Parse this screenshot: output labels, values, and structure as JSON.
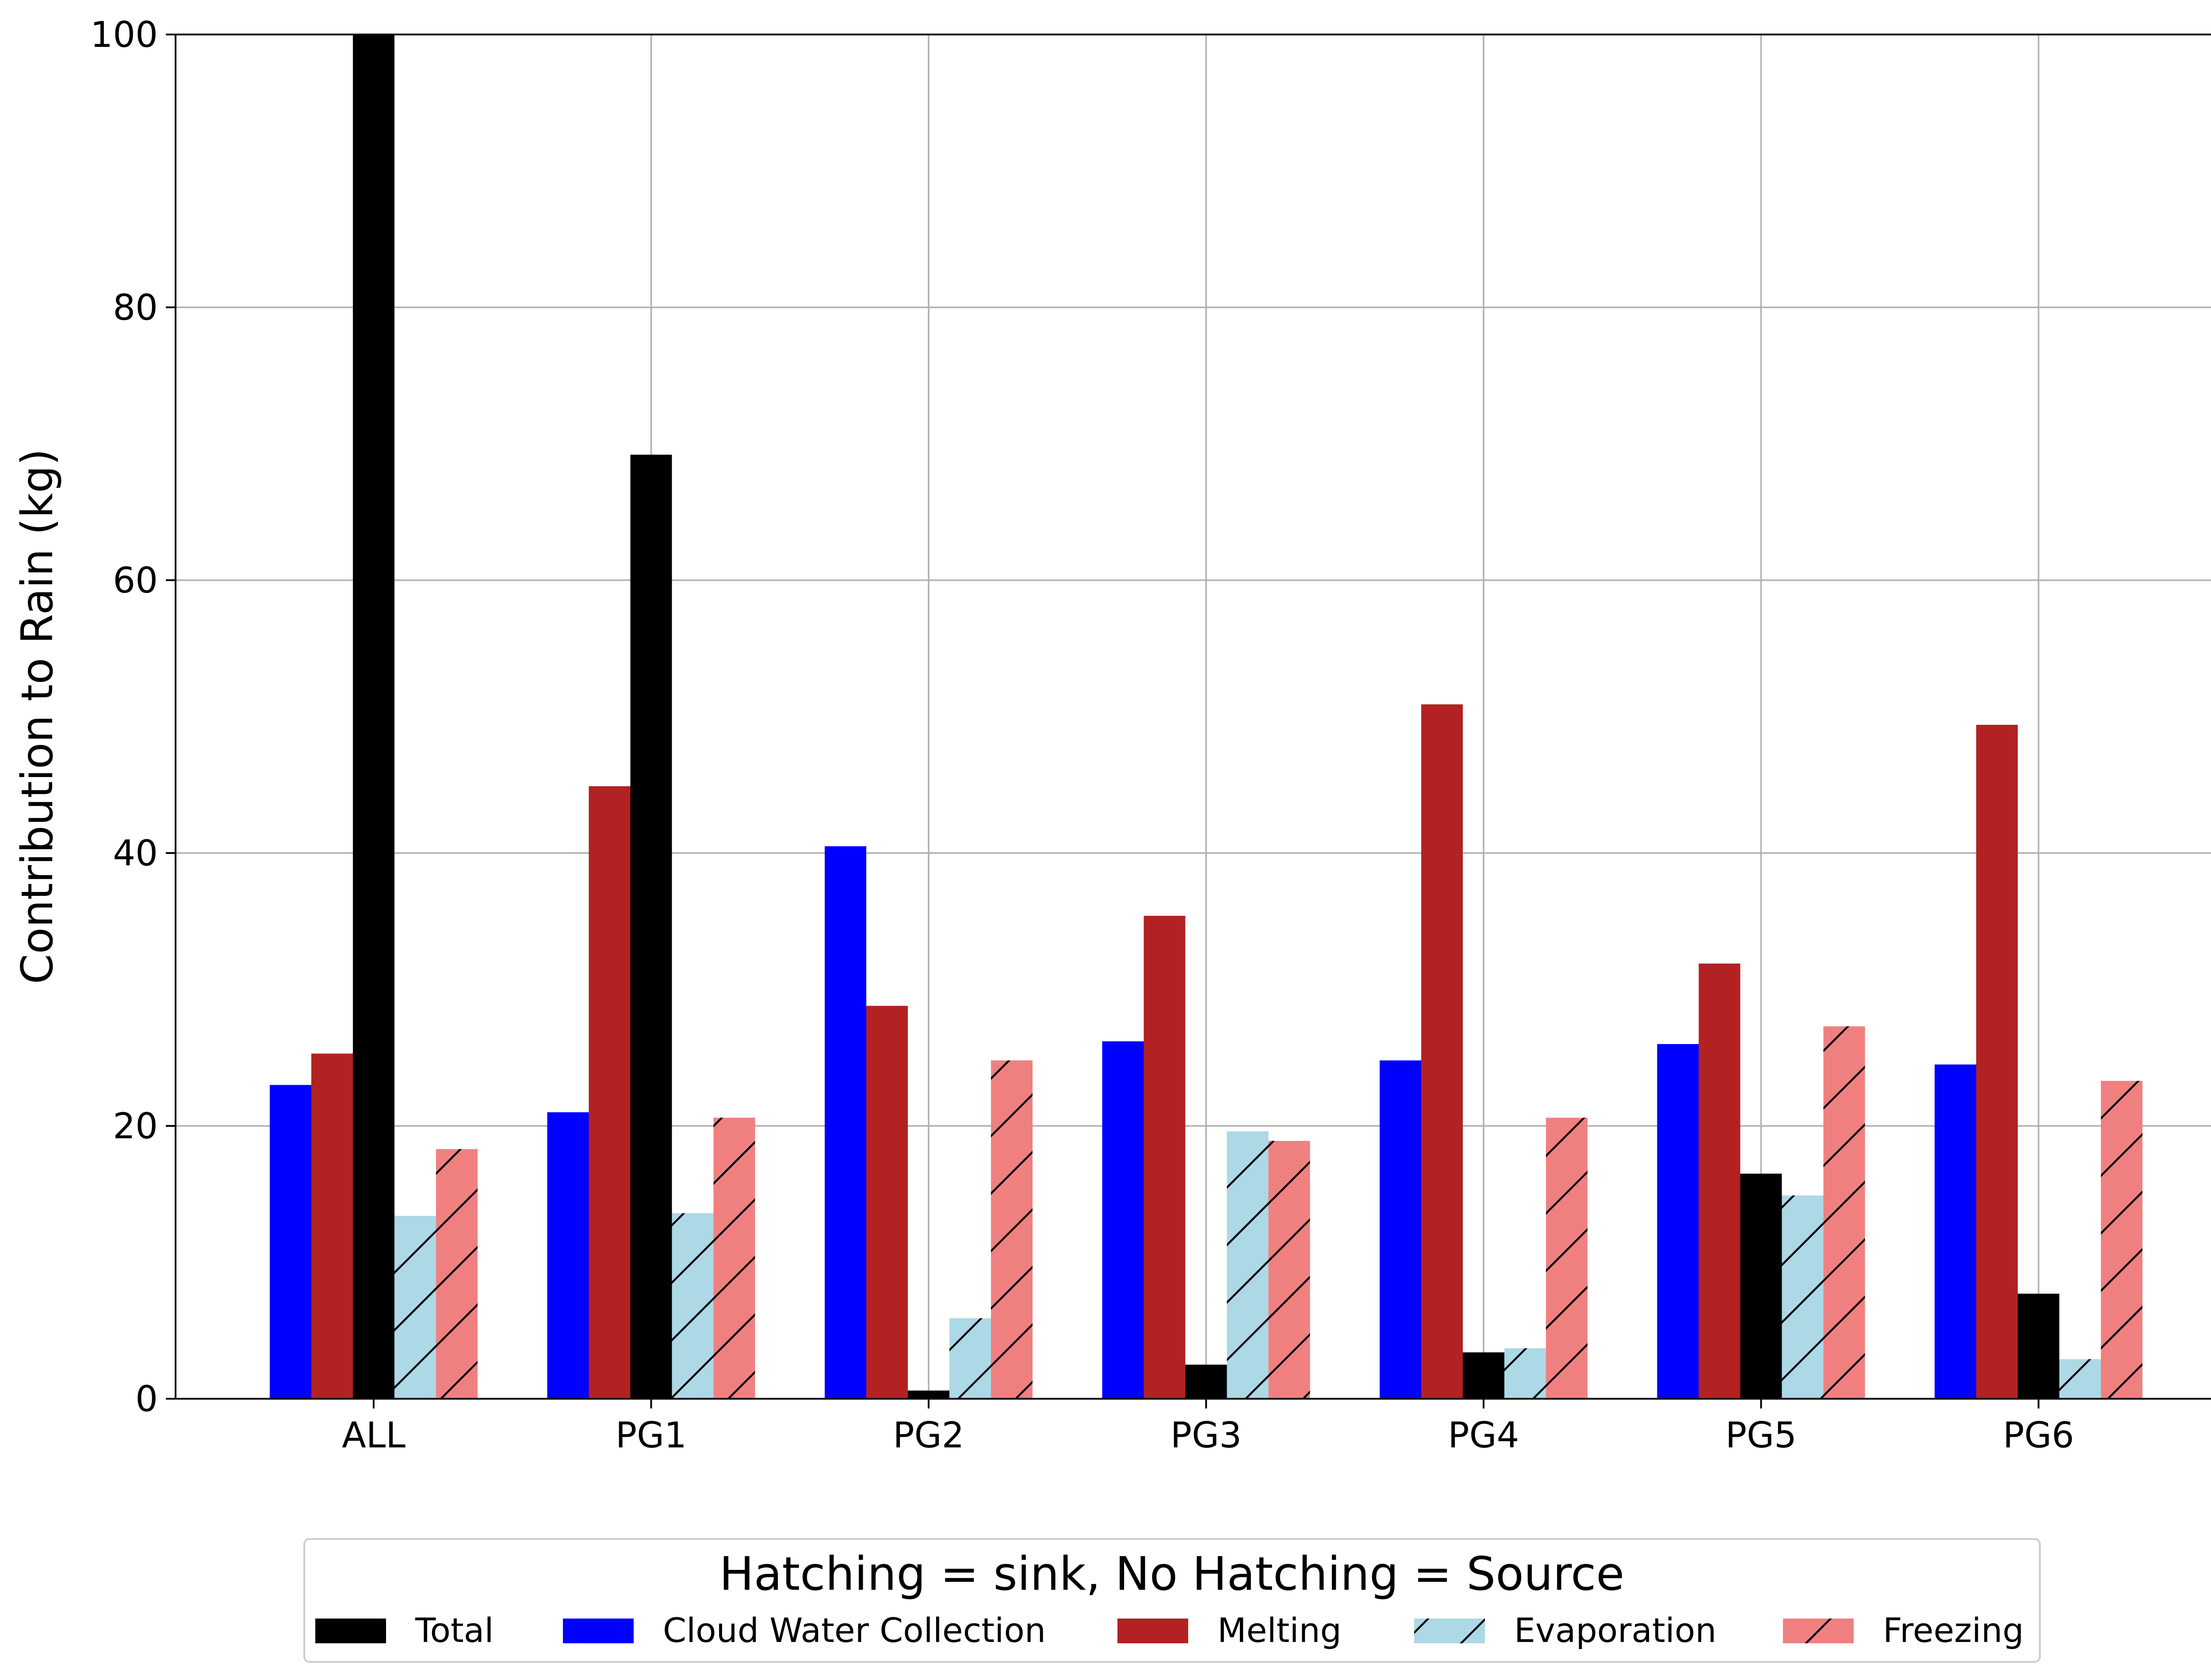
{
  "chart_data": {
    "type": "bar",
    "title": "",
    "xlabel": "",
    "ylabel": "Contribution to Rain (kg)",
    "ylim": [
      0,
      100
    ],
    "yticks": [
      "0",
      "20",
      "40",
      "60",
      "80",
      "100"
    ],
    "grid": true,
    "categories": [
      "ALL",
      "PG1",
      "PG2",
      "PG3",
      "PG4",
      "PG5",
      "PG6"
    ],
    "bar_order": [
      "Cloud Water Collection",
      "Melting",
      "Total",
      "Evaporation",
      "Freezing"
    ],
    "series": [
      {
        "name": "Total",
        "color": "#000000",
        "hatch": false,
        "values": [
          100,
          69.2,
          0.6,
          2.5,
          3.4,
          16.5,
          7.7
        ]
      },
      {
        "name": "Cloud Water Collection",
        "color": "#0000ff",
        "hatch": false,
        "values": [
          23.0,
          21.0,
          40.5,
          26.2,
          24.8,
          26.0,
          24.5
        ]
      },
      {
        "name": "Melting",
        "color": "#b22222",
        "hatch": false,
        "values": [
          25.3,
          44.9,
          28.8,
          35.4,
          50.9,
          31.9,
          49.4
        ]
      },
      {
        "name": "Evaporation",
        "color": "#add8e6",
        "hatch": true,
        "values": [
          13.4,
          13.6,
          5.9,
          19.6,
          3.7,
          14.9,
          2.9
        ]
      },
      {
        "name": "Freezing",
        "color": "#f08080",
        "hatch": true,
        "values": [
          18.3,
          20.6,
          24.8,
          18.9,
          20.6,
          27.3,
          23.3
        ]
      }
    ],
    "legend": {
      "title": "Hatching = sink, No Hatching = Source",
      "position": "bottom-center",
      "entries": [
        "Total",
        "Cloud Water Collection",
        "Melting",
        "Evaporation",
        "Freezing"
      ]
    }
  }
}
